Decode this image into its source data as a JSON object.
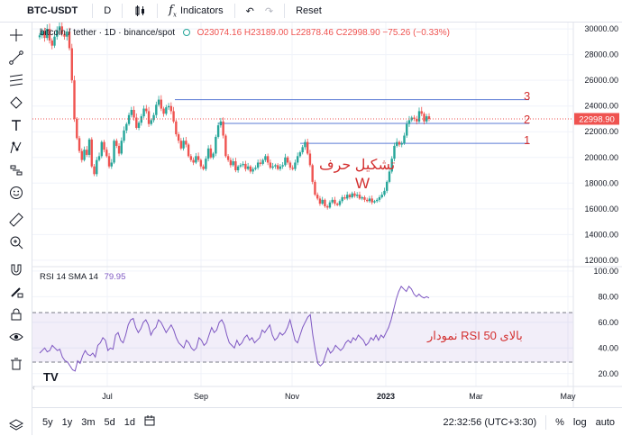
{
  "toolbar": {
    "symbol": "BTC-USDT",
    "interval": "D",
    "indicators_label": "Indicators",
    "reset_label": "Reset"
  },
  "legend": {
    "title": "bitcoin / tether · 1D · binance/spot",
    "open": "O23074.16",
    "high": "H23189.00",
    "low": "L22878.46",
    "close": "C22998.90",
    "change": "−75.26 (−0.33%)"
  },
  "rsi_legend": {
    "title": "RSI 14 SMA 14",
    "value": "79.95"
  },
  "price_axis": {
    "ticks": [
      "30000.00",
      "28000.00",
      "26000.00",
      "24000.00",
      "22000.00",
      "20000.00",
      "18000.00",
      "16000.00",
      "14000.00",
      "12000.00"
    ],
    "last_price": "22998.90"
  },
  "rsi_axis": {
    "ticks": [
      "100.00",
      "80.00",
      "60.00",
      "40.00",
      "20.00"
    ]
  },
  "time_axis": {
    "ticks": [
      "Jul",
      "Sep",
      "Nov",
      "2023",
      "Mar",
      "May"
    ]
  },
  "annotations": {
    "level_1": "1",
    "level_2": "2",
    "level_3": "3",
    "pattern_text": "تشکیل حرف",
    "pattern_letter": "W",
    "rsi_text": "نمودار RSI بالای 50"
  },
  "bottombar": {
    "ranges": [
      "5y",
      "1y",
      "3m",
      "5d",
      "1d"
    ],
    "time": "22:32:56 (UTC+3:30)",
    "percent": "%",
    "log": "log",
    "auto": "auto"
  },
  "chart_data": {
    "type": "candlestick",
    "price_range": [
      11500,
      30500
    ],
    "rsi_range": [
      10,
      102
    ],
    "rsi_bands": [
      30,
      70
    ],
    "price_series": [
      [
        29500,
        29800,
        29300,
        30000,
        29100,
        28700,
        29400,
        29900,
        30200,
        29600,
        29400,
        29800,
        28500,
        26000,
        23000,
        21500,
        20500,
        19800,
        20600,
        20200,
        21400,
        19300,
        18700,
        19800,
        20100,
        21200,
        20600,
        20100,
        19300,
        19600,
        21300,
        20900,
        20300,
        21300,
        22100,
        22600,
        23300,
        23700,
        23100,
        22300,
        22700,
        23200,
        23800,
        23600,
        22600,
        22900,
        23300,
        24100,
        24500,
        23800,
        23400,
        23900,
        24000,
        23600,
        22800,
        21800,
        21300,
        20700,
        21300,
        21000,
        20100,
        19800,
        19600,
        20100,
        19800,
        19300,
        19100,
        19900,
        20700,
        20000,
        20300,
        21600,
        22500,
        22800,
        21700,
        20100,
        19800,
        19400,
        19700,
        19000,
        19300,
        19400,
        19500,
        19100,
        19300,
        18900,
        19100,
        19200,
        19600,
        19500,
        19800,
        20100,
        19600,
        19200,
        19300,
        19400,
        19100,
        19300,
        19400,
        20000,
        19600,
        19200,
        19100,
        19600,
        20100,
        20400,
        20800,
        21200,
        20300,
        19400,
        18100,
        17100,
        16800,
        16400,
        16700,
        16200,
        16100,
        16500,
        16700,
        16400,
        16300,
        16600,
        16900,
        16800,
        17100,
        16900,
        17200,
        17000,
        17100,
        16800,
        16900,
        16700,
        16600,
        16800,
        16500,
        16600,
        16700,
        16900,
        17100,
        17400,
        18100,
        18900,
        19900,
        20900,
        21200,
        21000,
        21100,
        21700,
        22600,
        22900,
        23100,
        23000,
        22800,
        23600,
        23400,
        22800,
        23200,
        23000
      ]
    ],
    "rsi_series": [
      [
        36,
        38,
        40,
        37,
        38,
        42,
        40,
        38,
        39,
        33,
        30,
        29,
        26,
        23,
        22,
        30,
        28,
        34,
        38,
        35,
        34,
        36,
        33,
        42,
        44,
        48,
        46,
        38,
        40,
        39,
        50,
        52,
        46,
        44,
        50,
        58,
        62,
        63,
        56,
        52,
        55,
        60,
        62,
        58,
        50,
        54,
        56,
        62,
        60,
        56,
        52,
        55,
        58,
        54,
        48,
        44,
        42,
        40,
        46,
        44,
        40,
        38,
        40,
        48,
        46,
        42,
        44,
        50,
        56,
        52,
        54,
        60,
        62,
        58,
        50,
        44,
        42,
        40,
        46,
        42,
        44,
        48,
        50,
        46,
        48,
        44,
        46,
        48,
        54,
        52,
        55,
        58,
        50,
        46,
        48,
        52,
        50,
        52,
        56,
        62,
        54,
        46,
        44,
        50,
        56,
        60,
        64,
        66,
        50,
        38,
        28,
        26,
        28,
        34,
        40,
        36,
        38,
        42,
        40,
        38,
        40,
        44,
        46,
        44,
        48,
        46,
        50,
        48,
        46,
        42,
        44,
        48,
        46,
        50,
        46,
        50,
        48,
        52,
        56,
        62,
        70,
        78,
        84,
        88,
        86,
        84,
        88,
        86,
        82,
        80,
        82,
        80,
        79,
        80,
        79
      ]
    ],
    "levels": [
      21100,
      22650,
      24500
    ],
    "y_label": "",
    "x_label": ""
  }
}
